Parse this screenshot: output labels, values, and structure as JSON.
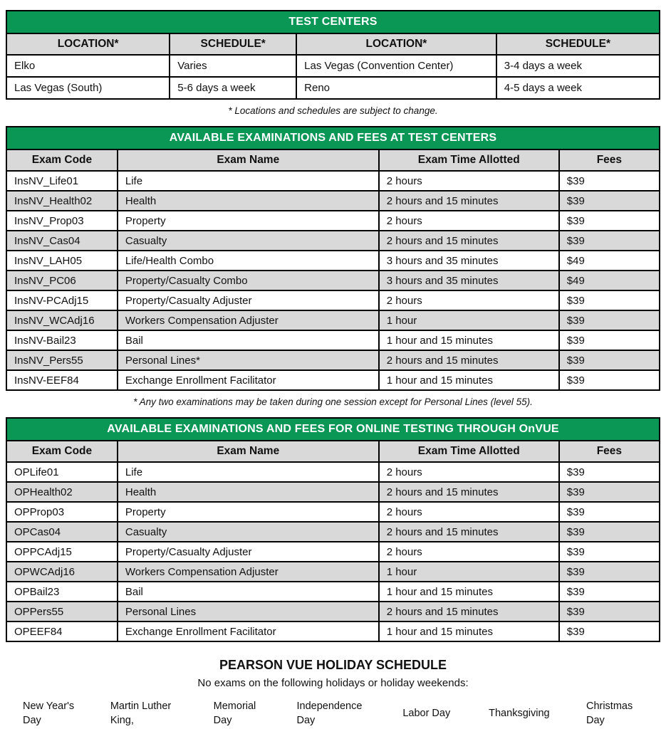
{
  "colors": {
    "header_green": "#0a9655",
    "band_gray": "#d9d9d9",
    "border_black": "#000000"
  },
  "test_centers": {
    "title": "TEST CENTERS",
    "columns": [
      "LOCATION*",
      "SCHEDULE*",
      "LOCATION*",
      "SCHEDULE*"
    ],
    "rows": [
      [
        "Elko",
        "Varies",
        "Las Vegas (Convention Center)",
        "3-4 days a week"
      ],
      [
        "Las Vegas (South)",
        "5-6 days a week",
        "Reno",
        "4-5 days a week"
      ]
    ],
    "footnote": "* Locations and schedules are subject to change."
  },
  "test_center_exams": {
    "title": "AVAILABLE EXAMINATIONS AND FEES AT TEST CENTERS",
    "columns": [
      "Exam Code",
      "Exam Name",
      "Exam Time Allotted",
      "Fees"
    ],
    "rows": [
      [
        "InsNV_Life01",
        "Life",
        "2 hours",
        "$39"
      ],
      [
        "InsNV_Health02",
        "Health",
        "2 hours and 15 minutes",
        "$39"
      ],
      [
        "InsNV_Prop03",
        "Property",
        "2 hours",
        "$39"
      ],
      [
        "InsNV_Cas04",
        "Casualty",
        "2 hours and 15 minutes",
        "$39"
      ],
      [
        "InsNV_LAH05",
        "Life/Health Combo",
        "3 hours and 35 minutes",
        "$49"
      ],
      [
        "InsNV_PC06",
        "Property/Casualty Combo",
        "3 hours and 35 minutes",
        "$49"
      ],
      [
        "InsNV-PCAdj15",
        "Property/Casualty Adjuster",
        "2 hours",
        "$39"
      ],
      [
        "InsNV_WCAdj16",
        "Workers Compensation Adjuster",
        "1 hour",
        "$39"
      ],
      [
        "InsNV-Bail23",
        "Bail",
        "1 hour and 15 minutes",
        "$39"
      ],
      [
        "InsNV_Pers55",
        "Personal Lines*",
        "2 hours and 15 minutes",
        "$39"
      ],
      [
        "InsNV-EEF84",
        "Exchange Enrollment Facilitator",
        "1 hour and 15 minutes",
        "$39"
      ]
    ],
    "footnote": "* Any two examinations may be taken during one session except for Personal Lines (level 55)."
  },
  "online_exams": {
    "title": "AVAILABLE EXAMINATIONS AND FEES FOR ONLINE TESTING THROUGH OnVUE",
    "columns": [
      "Exam Code",
      "Exam Name",
      "Exam Time Allotted",
      "Fees"
    ],
    "rows": [
      [
        "OPLife01",
        "Life",
        "2 hours",
        "$39"
      ],
      [
        "OPHealth02",
        "Health",
        "2 hours and 15 minutes",
        "$39"
      ],
      [
        "OPProp03",
        "Property",
        "2 hours",
        "$39"
      ],
      [
        "OPCas04",
        "Casualty",
        "2 hours and 15 minutes",
        "$39"
      ],
      [
        "OPPCAdj15",
        "Property/Casualty Adjuster",
        "2 hours",
        "$39"
      ],
      [
        "OPWCAdj16",
        "Workers Compensation Adjuster",
        "1 hour",
        "$39"
      ],
      [
        "OPBail23",
        "Bail",
        "1 hour and 15 minutes",
        "$39"
      ],
      [
        "OPPers55",
        "Personal Lines",
        "2 hours and 15 minutes",
        "$39"
      ],
      [
        "OPEEF84",
        "Exchange Enrollment Facilitator",
        "1 hour and 15 minutes",
        "$39"
      ]
    ]
  },
  "holiday_schedule": {
    "title": "PEARSON VUE HOLIDAY SCHEDULE",
    "subtitle": "No exams on the following holidays or holiday weekends:",
    "holidays": [
      "New Year's Day",
      "Martin Luther King,",
      "Memorial Day",
      "Independence Day",
      "Labor Day",
      "Thanksgiving",
      "Christmas Day"
    ]
  }
}
